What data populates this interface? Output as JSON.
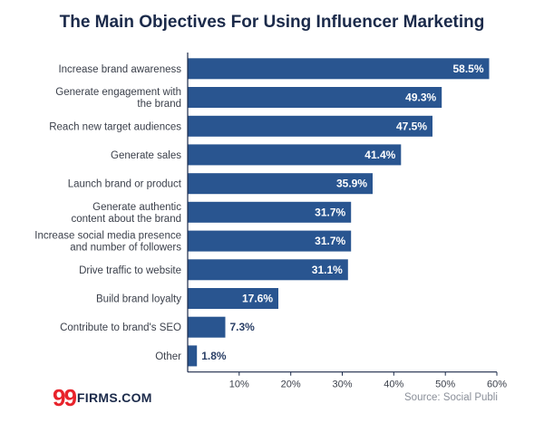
{
  "chart_data": {
    "type": "bar",
    "orientation": "horizontal",
    "title": "The Main Objectives For Using Influencer Marketing",
    "categories": [
      [
        "Increase brand awareness"
      ],
      [
        "Generate engagement with",
        "the brand"
      ],
      [
        "Reach new target audiences"
      ],
      [
        "Generate sales"
      ],
      [
        "Launch brand or product"
      ],
      [
        "Generate authentic",
        "content about the brand"
      ],
      [
        "Increase social media presence",
        "and number of followers"
      ],
      [
        "Drive traffic to website"
      ],
      [
        "Build brand loyalty"
      ],
      [
        "Contribute to brand's SEO"
      ],
      [
        "Other"
      ]
    ],
    "values": [
      58.5,
      49.3,
      47.5,
      41.4,
      35.9,
      31.7,
      31.7,
      31.1,
      17.6,
      7.3,
      1.8
    ],
    "value_labels": [
      "58.5%",
      "49.3%",
      "47.5%",
      "41.4%",
      "35.9%",
      "31.7%",
      "31.7%",
      "31.1%",
      "17.6%",
      "7.3%",
      "1.8%"
    ],
    "xlim": [
      0,
      60
    ],
    "xticks": [
      10,
      20,
      30,
      40,
      50,
      60
    ],
    "xtick_labels": [
      "10%",
      "20%",
      "30%",
      "40%",
      "50%",
      "60%"
    ],
    "xlabel": "",
    "ylabel": "",
    "grid": false,
    "bar_color": "#295590",
    "axis_color": "#1b2a4a"
  },
  "branding": {
    "logo_number": "99",
    "logo_text": "FIRMS.COM",
    "source": "Source: Social Publi"
  }
}
